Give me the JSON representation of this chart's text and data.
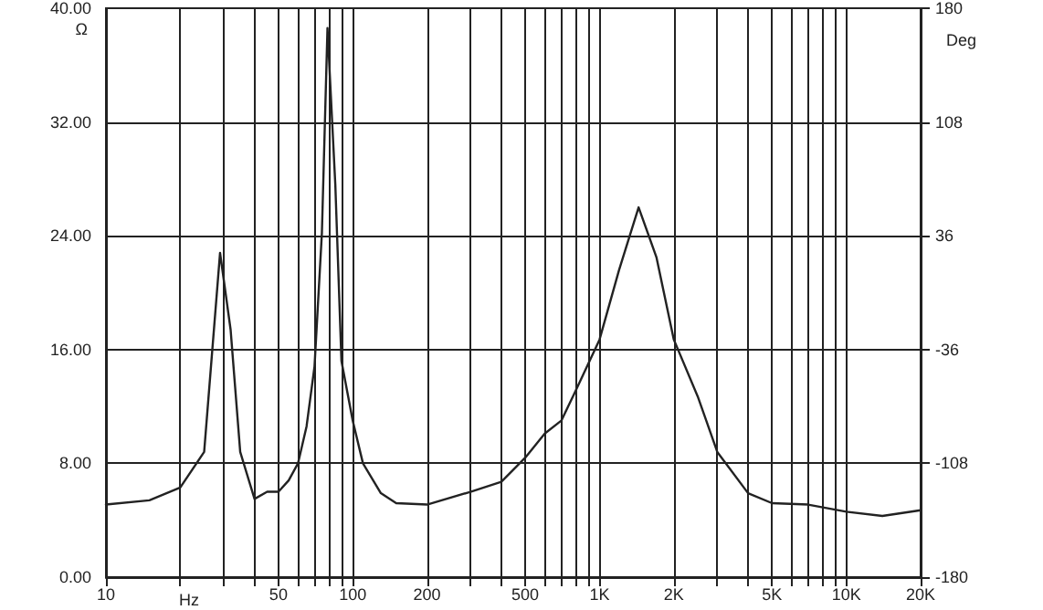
{
  "chart_data": {
    "type": "line",
    "xlabel": "Hz",
    "ylabel": "Ω",
    "y2label": "Deg",
    "log": "x",
    "grid": true,
    "marker": "none",
    "line_style": "solid",
    "x": [
      10,
      15,
      20,
      25,
      29,
      32,
      35,
      40,
      45,
      50,
      55,
      60,
      65,
      70,
      75,
      79,
      85,
      90,
      100,
      110,
      130,
      150,
      200,
      300,
      400,
      500,
      600,
      700,
      800,
      1000,
      1200,
      1440,
      1700,
      2000,
      2500,
      3000,
      4000,
      5000,
      7000,
      10000,
      14000,
      20000
    ],
    "series": [
      {
        "color": "#222222",
        "values": [
          5.1,
          5.4,
          6.3,
          8.8,
          22.8,
          17.4,
          8.8,
          5.5,
          6.0,
          6.0,
          6.8,
          8.0,
          10.6,
          14.8,
          24.2,
          38.6,
          27.6,
          15.2,
          11.0,
          8.0,
          5.9,
          5.2,
          5.1,
          6.0,
          6.7,
          8.4,
          10.1,
          11.0,
          13.1,
          16.7,
          21.6,
          26.0,
          22.5,
          16.7,
          12.7,
          8.8,
          5.9,
          5.2,
          5.1,
          4.6,
          4.3,
          4.7
        ]
      }
    ],
    "xlim": [
      10,
      20000
    ],
    "xticks": [
      10,
      50,
      100,
      200,
      500,
      {
        "value": 1000,
        "label": "1K"
      },
      {
        "value": 2000,
        "label": "2K"
      },
      {
        "value": 5000,
        "label": "5K"
      },
      {
        "value": 10000,
        "label": "10K"
      },
      {
        "value": 20000,
        "label": "20K"
      }
    ],
    "ylim": [
      0,
      40
    ],
    "yticks": [
      {
        "value": 0,
        "label": "0.00"
      },
      {
        "value": 8,
        "label": "8.00"
      },
      {
        "value": 16,
        "label": "16.00"
      },
      {
        "value": 24,
        "label": "24.00"
      },
      {
        "value": 32,
        "label": "32.00"
      },
      {
        "value": 40,
        "label": "40.00"
      }
    ],
    "y2lim": [
      -180,
      180
    ],
    "y2ticks": [
      -180,
      -108,
      -36,
      36,
      108,
      180
    ]
  }
}
